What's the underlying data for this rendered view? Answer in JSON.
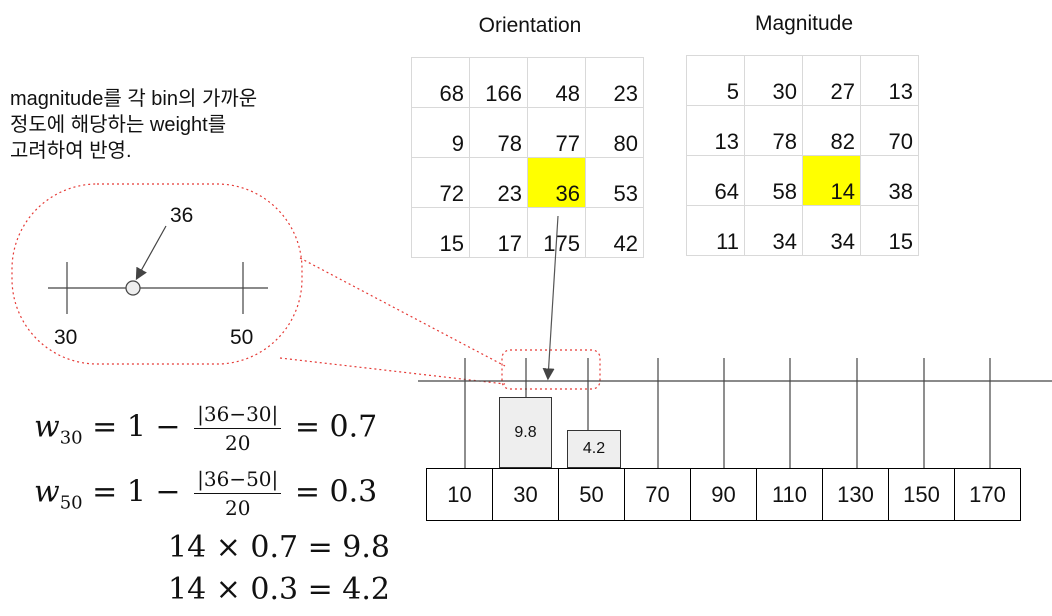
{
  "orientation": {
    "title": "Orientation",
    "rows": [
      [
        "68",
        "166",
        "48",
        "23"
      ],
      [
        "9",
        "78",
        "77",
        "80"
      ],
      [
        "72",
        "23",
        "36",
        "53"
      ],
      [
        "15",
        "17",
        "175",
        "42"
      ]
    ]
  },
  "magnitude": {
    "title": "Magnitude",
    "rows": [
      [
        "5",
        "30",
        "27",
        "13"
      ],
      [
        "13",
        "78",
        "82",
        "70"
      ],
      [
        "64",
        "58",
        "14",
        "38"
      ],
      [
        "11",
        "34",
        "34",
        "15"
      ]
    ]
  },
  "note": {
    "line1": "magnitude를 각 bin의 가까운",
    "line2": "정도에 해당하는 weight를",
    "line3": "고려하여 반영."
  },
  "zoom": {
    "point_label": "36",
    "left_tick": "30",
    "right_tick": "50"
  },
  "histogram": {
    "bins": [
      "10",
      "30",
      "50",
      "70",
      "90",
      "110",
      "130",
      "150",
      "170"
    ],
    "bar_30_value": "9.8",
    "bar_50_value": "4.2"
  },
  "equations": {
    "w30_var": "w",
    "w30_sub": "30",
    "w30_lhs": "= 1 −",
    "w30_num": "|36−30|",
    "w30_den": "20",
    "w30_rhs": "= 0.7",
    "w50_var": "w",
    "w50_sub": "50",
    "w50_lhs": "= 1 −",
    "w50_num": "|36−50|",
    "w50_den": "20",
    "w50_rhs": "= 0.3",
    "prod1": "14 × 0.7 = 9.8",
    "prod2": "14 × 0.3 = 4.2"
  },
  "colors": {
    "highlight": "#ffff00",
    "dotted": "#e53935",
    "bar_fill": "#eeeeee"
  }
}
